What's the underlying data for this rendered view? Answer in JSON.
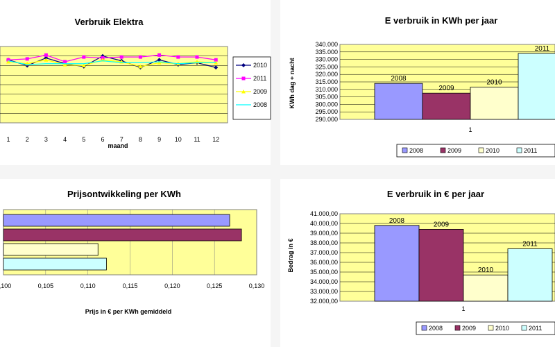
{
  "colors": {
    "plot_bg": "#ffff99",
    "c2008": "#9999ff",
    "c2009": "#993366",
    "c2010": "#ffffcc",
    "c2011": "#ccffff",
    "line2010": "#000080",
    "line2011": "#ff00ff",
    "line2009": "#ffff00",
    "line2008": "#00ffff"
  },
  "chart_data": [
    {
      "id": "verbruik",
      "type": "line",
      "title": "Verbruik Elektra",
      "xlabel": "maand",
      "ylabel": "",
      "x": [
        "1",
        "2",
        "3",
        "4",
        "5",
        "6",
        "7",
        "8",
        "9",
        "10",
        "11",
        "12"
      ],
      "ylim": [
        0,
        8
      ],
      "gridlines": 8,
      "legend": "right",
      "series": [
        {
          "name": "2010",
          "marker": "diamond",
          "values": [
            6.6,
            6.0,
            6.8,
            6.2,
            5.9,
            7.0,
            6.5,
            5.8,
            6.6,
            6.1,
            6.3,
            5.8
          ]
        },
        {
          "name": "2011",
          "marker": "square",
          "values": [
            6.6,
            6.7,
            7.1,
            6.4,
            6.9,
            6.8,
            6.9,
            6.9,
            7.1,
            6.9,
            6.9,
            6.6
          ]
        },
        {
          "name": "2009",
          "marker": "triangle",
          "values": [
            6.4,
            6.2,
            6.6,
            6.1,
            6.0,
            6.6,
            6.4,
            5.9,
            6.3,
            6.2,
            6.4,
            6.3
          ]
        },
        {
          "name": "2008",
          "marker": "none",
          "values": [
            6.5,
            6.1,
            6.2,
            6.2,
            6.2,
            6.5,
            6.3,
            6.3,
            6.4,
            6.2,
            6.3,
            6.3
          ]
        }
      ]
    },
    {
      "id": "kwh",
      "type": "bar",
      "title": "E verbruik in KWh per jaar",
      "ylabel": "KWh dag + nacht",
      "xlabel": "",
      "categories": [
        "1"
      ],
      "ylim": [
        290000,
        340000
      ],
      "yticks": [
        "290.000",
        "295.000",
        "300.000",
        "305.000",
        "310.000",
        "315.000",
        "320.000",
        "325.000",
        "330.000",
        "335.000",
        "340.000"
      ],
      "legend": "bottom",
      "series": [
        {
          "name": "2008",
          "values": [
            314000
          ]
        },
        {
          "name": "2009",
          "values": [
            307500
          ]
        },
        {
          "name": "2010",
          "values": [
            311500
          ]
        },
        {
          "name": "2011",
          "values": [
            334000
          ]
        }
      ]
    },
    {
      "id": "prijs",
      "type": "bar",
      "orientation": "horizontal",
      "title": "Prijsontwikkeling per KWh",
      "xlabel": "Prijs in € per KWh gemiddeld",
      "ylabel": "",
      "xlim": [
        0.1,
        0.13
      ],
      "xticks": [
        "0,100",
        "0,105",
        "0,110",
        "0,115",
        "0,120",
        "0,125",
        "0,130"
      ],
      "series": [
        {
          "name": "2008",
          "values": [
            0.1268
          ]
        },
        {
          "name": "2009",
          "values": [
            0.1282
          ]
        },
        {
          "name": "2010",
          "values": [
            0.1112
          ]
        },
        {
          "name": "2011",
          "values": [
            0.1122
          ]
        }
      ]
    },
    {
      "id": "euro",
      "type": "bar",
      "title": "E verbruik in € per jaar",
      "ylabel": "Bedrag in €",
      "xlabel": "",
      "categories": [
        "1"
      ],
      "ylim": [
        32000,
        41000
      ],
      "yticks": [
        "32.000,00",
        "33.000,00",
        "34.000,00",
        "35.000,00",
        "36.000,00",
        "37.000,00",
        "38.000,00",
        "39.000,00",
        "40.000,00",
        "41.000,00"
      ],
      "legend": "bottom",
      "series": [
        {
          "name": "2008",
          "values": [
            39800
          ]
        },
        {
          "name": "2009",
          "values": [
            39400
          ]
        },
        {
          "name": "2010",
          "values": [
            34700
          ]
        },
        {
          "name": "2011",
          "values": [
            37400
          ]
        }
      ]
    }
  ]
}
